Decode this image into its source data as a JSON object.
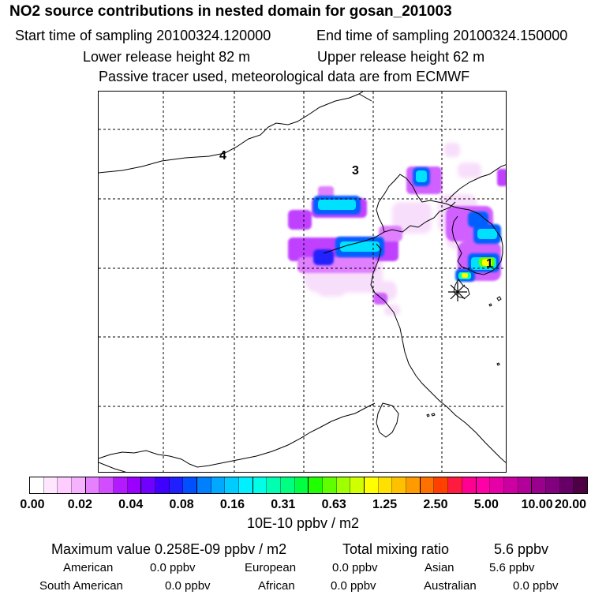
{
  "header": {
    "title": "NO2 source contributions in nested domain for gosan_201003",
    "start_label": "Start time of sampling 20100324.120000",
    "end_label": "End time of sampling 20100324.150000",
    "lower_label": "Lower release height   82 m",
    "upper_label": "Upper release height   62 m",
    "note": "Passive tracer used, meteorological data are from ECMWF"
  },
  "map": {
    "region_labels": [
      "4",
      "3",
      "1"
    ],
    "receptor_marker": "asterisk-icon"
  },
  "colorbar": {
    "tick_labels": [
      "0.00",
      "0.02",
      "0.04",
      "0.08",
      "0.16",
      "0.31",
      "0.63",
      "1.25",
      "2.50",
      "5.00",
      "10.00",
      "20.00"
    ],
    "units": "10E-10 ppbv / m2",
    "colors": [
      "#ffffff",
      "#ffe6ff",
      "#ffccff",
      "#f5b3ff",
      "#e680ff",
      "#d24dff",
      "#b31aff",
      "#9900ff",
      "#7000ff",
      "#4000ff",
      "#2020ff",
      "#0050ff",
      "#0080ff",
      "#00a8ff",
      "#00ccff",
      "#00f0ff",
      "#00ffe6",
      "#00ffb0",
      "#00ff80",
      "#00ff40",
      "#20ff00",
      "#60ff00",
      "#a0ff00",
      "#d0ff00",
      "#ffff00",
      "#ffe000",
      "#ffc000",
      "#ff9a00",
      "#ff7000",
      "#ff4000",
      "#ff1a40",
      "#ff0090",
      "#ff00a8",
      "#e600a8",
      "#cc00a0",
      "#b3009a",
      "#99008c",
      "#800080",
      "#660066",
      "#4d0044"
    ]
  },
  "summary": {
    "max_label": "Maximum value  0.258E-09 ppbv / m2",
    "total_label": "Total mixing ratio",
    "total_value": "5.6 ppbv",
    "rows": [
      {
        "name": "American",
        "value": "0.0 ppbv"
      },
      {
        "name": "European",
        "value": "0.0 ppbv"
      },
      {
        "name": "Asian",
        "value": "5.6 ppbv"
      },
      {
        "name": "South American",
        "value": "0.0 ppbv"
      },
      {
        "name": "African",
        "value": "0.0 ppbv"
      },
      {
        "name": "Australian",
        "value": "0.0 ppbv"
      }
    ]
  }
}
